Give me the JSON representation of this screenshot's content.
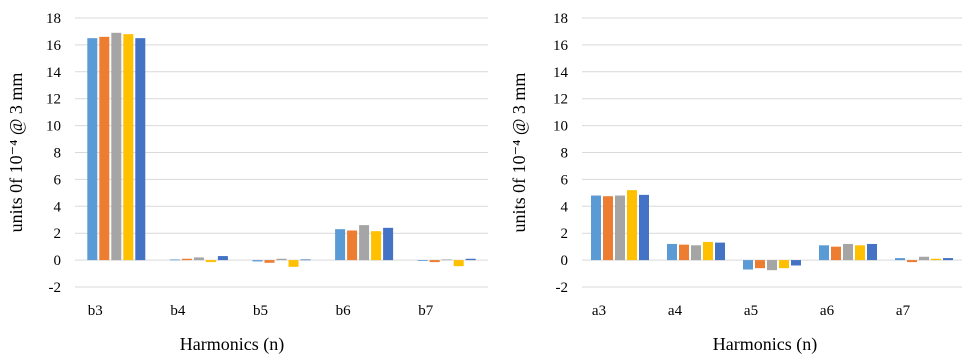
{
  "palette": [
    "#5B9BD5",
    "#ED7D31",
    "#A5A5A5",
    "#FFC000",
    "#4472C4"
  ],
  "chart_data": [
    {
      "type": "bar",
      "xlabel": "Harmonics (n)",
      "ylabel": "units  0f 10⁻⁴ @ 3 mm",
      "ylim": [
        -2,
        18
      ],
      "yticks": [
        -2,
        0,
        2,
        4,
        6,
        8,
        10,
        12,
        14,
        16,
        18
      ],
      "grid": true,
      "legend": "none",
      "categories": [
        "b3",
        "b4",
        "b5",
        "b6",
        "b7"
      ],
      "series": [
        {
          "values": [
            16.5,
            0.05,
            -0.1,
            2.3,
            0.0
          ]
        },
        {
          "values": [
            16.6,
            0.1,
            -0.2,
            2.2,
            -0.15
          ]
        },
        {
          "values": [
            16.9,
            0.2,
            0.1,
            2.6,
            0.05
          ]
        },
        {
          "values": [
            16.8,
            -0.15,
            -0.5,
            2.15,
            -0.45
          ]
        },
        {
          "values": [
            16.5,
            0.3,
            0.05,
            2.4,
            0.1
          ]
        }
      ]
    },
    {
      "type": "bar",
      "xlabel": "Harmonics (n)",
      "ylabel": "units  0f 10⁻⁴ @ 3 mm",
      "ylim": [
        -2,
        18
      ],
      "yticks": [
        -2,
        0,
        2,
        4,
        6,
        8,
        10,
        12,
        14,
        16,
        18
      ],
      "grid": true,
      "legend": "none",
      "categories": [
        "a3",
        "a4",
        "a5",
        "a6",
        "a7"
      ],
      "series": [
        {
          "values": [
            4.8,
            1.2,
            -0.7,
            1.1,
            0.15
          ]
        },
        {
          "values": [
            4.75,
            1.15,
            -0.6,
            1.0,
            -0.15
          ]
        },
        {
          "values": [
            4.8,
            1.1,
            -0.75,
            1.2,
            0.25
          ]
        },
        {
          "values": [
            5.2,
            1.35,
            -0.6,
            1.1,
            0.1
          ]
        },
        {
          "values": [
            4.85,
            1.3,
            -0.4,
            1.2,
            0.15
          ]
        }
      ]
    }
  ]
}
